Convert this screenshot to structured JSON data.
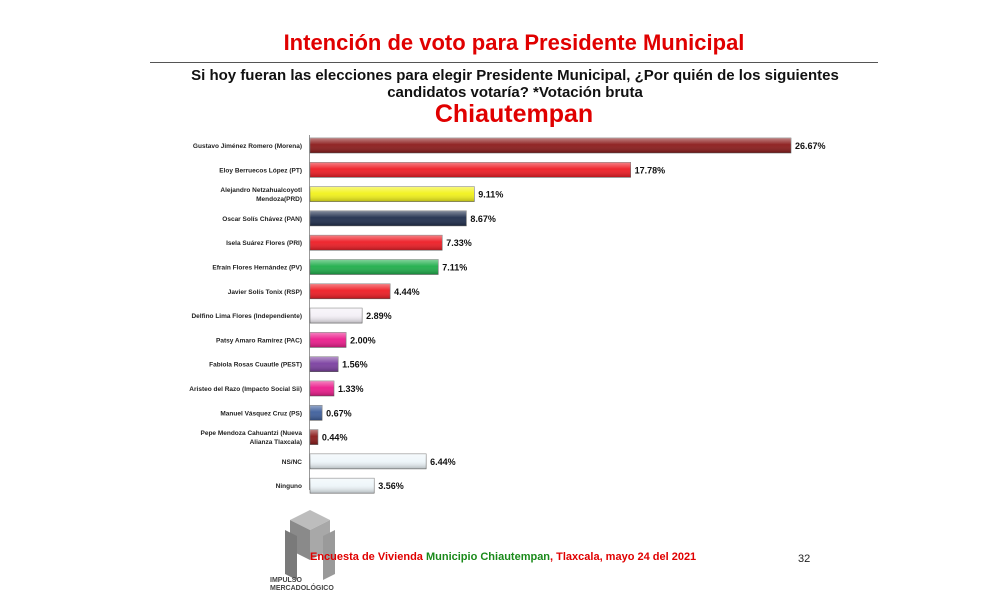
{
  "title": "Intención de voto para Presidente Municipal",
  "question_line1": "Si hoy fueran las elecciones para elegir Presidente Municipal, ¿Por quién de los siguientes",
  "question_line2": "candidatos votaría? *Votación bruta",
  "place": "Chiautempan",
  "footer": {
    "part1": "Encuesta de Vivienda ",
    "part2": "Municipio Chiautempan",
    "part3": ", Tlaxcala, mayo 24  del 2021"
  },
  "page_number": "32",
  "logo": {
    "line1": "IMPULSO",
    "line2": "MERCADOLÓGICO",
    "icon": "m-cube-logo-icon"
  },
  "chart_data": {
    "type": "bar",
    "orientation": "horizontal",
    "categories": [
      [
        "Gustavo Jiménez Romero (Morena)"
      ],
      [
        "Eloy Berruecos López (PT)"
      ],
      [
        "Alejandro Netzahualcoyotl",
        "Mendoza(PRD)"
      ],
      [
        "Oscar  Solís Chávez (PAN)"
      ],
      [
        "Isela Suárez Flores  (PRI)"
      ],
      [
        "Efraín Flores Hernández (PV)"
      ],
      [
        "Javier Solís Tonix (RSP)"
      ],
      [
        "Delfino Lima Flores (Independiente)"
      ],
      [
        "Patsy Amaro Ramírez (PAC)"
      ],
      [
        "Fabiola Rosas Cuautle (PEST)"
      ],
      [
        "Aristeo del Razo (Impacto Social Sii)"
      ],
      [
        "Manuel Vásquez Cruz (PS)"
      ],
      [
        "Pepe Mendoza Cahuantzi (Nueva",
        "Alianza Tlaxcala)"
      ],
      [
        "NS/NC"
      ],
      [
        "Ninguno"
      ]
    ],
    "values": [
      26.67,
      17.78,
      9.11,
      8.67,
      7.33,
      7.11,
      4.44,
      2.89,
      2.0,
      1.56,
      1.33,
      0.67,
      0.44,
      6.44,
      3.56
    ],
    "value_labels": [
      "26.67%",
      "17.78%",
      "9.11%",
      "8.67%",
      "7.33%",
      "7.11%",
      "4.44%",
      "2.89%",
      "2.00%",
      "1.56%",
      "1.33%",
      "0.67%",
      "0.44%",
      "6.44%",
      "3.56%"
    ],
    "colors": [
      "#8b1a1a",
      "#ee1c24",
      "#f2f21a",
      "#1f2e4d",
      "#ee1c24",
      "#1fae4b",
      "#ee1c24",
      "#f4f0f7",
      "#ec1c8c",
      "#7b3fa0",
      "#ec1c8c",
      "#3e5f9c",
      "#8b1a1a",
      "#eef6fa",
      "#eef6fa"
    ],
    "xlim": [
      0,
      26.67
    ],
    "grid": false,
    "legend": "none"
  }
}
